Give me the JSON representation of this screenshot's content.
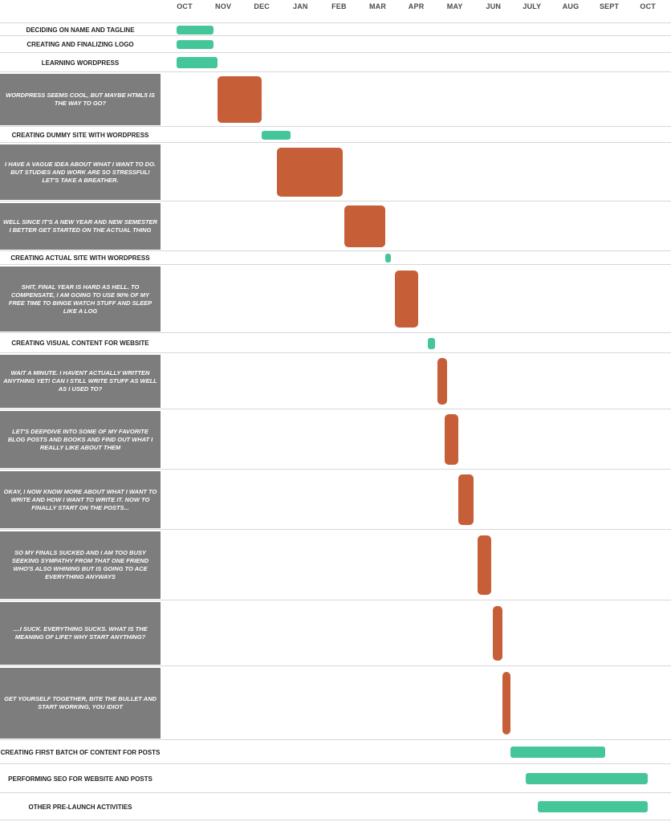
{
  "chart_data": {
    "type": "gantt",
    "x_axis": {
      "labels": [
        "OCT",
        "NOV",
        "DEC",
        "JAN",
        "FEB",
        "MAR",
        "APR",
        "MAY",
        "JUN",
        "JULY",
        "AUG",
        "SEPT",
        "OCT"
      ]
    },
    "colors": {
      "task": "#44c699",
      "note": "#c65f38",
      "note_label_bg": "#7d7d7d"
    },
    "rows": [
      {
        "label": "DECIDING ON NAME AND TAGLINE",
        "kind": "task",
        "start": 0.0,
        "end": 0.95
      },
      {
        "label": "CREATING AND FINALIZING LOGO",
        "kind": "task",
        "start": 0.0,
        "end": 0.95
      },
      {
        "label": "LEARNING WORDPRESS",
        "kind": "task",
        "start": 0.0,
        "end": 1.05
      },
      {
        "label": "WORDPRESS SEEMS COOL, BUT MAYBE HTML5 IS THE WAY TO GO?",
        "kind": "note",
        "start": 1.05,
        "end": 2.2
      },
      {
        "label": "CREATING DUMMY SITE WITH WORDPRESS",
        "kind": "task",
        "start": 2.2,
        "end": 2.95
      },
      {
        "label": "I HAVE A VAGUE IDEA ABOUT WHAT I WANT TO DO. BUT STUDIES AND WORK ARE SO STRESSFUL! LET'S TAKE A BREATHER.",
        "kind": "note",
        "start": 2.6,
        "end": 4.3
      },
      {
        "label": "WELL SINCE IT'S A NEW YEAR AND NEW SEMESTER I BETTER GET STARTED ON THE ACTUAL THING",
        "kind": "note",
        "start": 4.35,
        "end": 5.4
      },
      {
        "label": "CREATING ACTUAL SITE WITH WORDPRESS",
        "kind": "task",
        "start": 5.4,
        "end": 5.55
      },
      {
        "label": "SHIT, FINAL YEAR IS HARD AS HELL. TO COMPENSATE, I AM GOING TO USE 90% OF MY FREE TIME TO BINGE WATCH STUFF AND SLEEP LIKE A LOG",
        "kind": "note",
        "start": 5.65,
        "end": 6.25
      },
      {
        "label": "CREATING VISUAL CONTENT FOR WEBSITE",
        "kind": "task",
        "start": 6.5,
        "end": 6.7
      },
      {
        "label": "WAIT A MINUTE. I HAVENT ACTUALLY WRITTEN ANYTHING YET! CAN I STILL WRITE STUFF AS WELL AS I USED TO?",
        "kind": "note",
        "start": 6.75,
        "end": 7.0
      },
      {
        "label": "LET'S DEEPDIVE INTO SOME OF MY FAVORITE BLOG POSTS AND BOOKS AND FIND OUT WHAT I REALLY LIKE ABOUT THEM",
        "kind": "note",
        "start": 6.95,
        "end": 7.3
      },
      {
        "label": "OKAY, I NOW KNOW MORE ABOUT WHAT I WANT TO WRITE AND HOW I WANT TO WRITE IT. NOW TO FINALLY START ON THE POSTS...",
        "kind": "note",
        "start": 7.3,
        "end": 7.7
      },
      {
        "label": "SO MY FINALS SUCKED AND I AM TOO BUSY SEEKING SYMPATHY FROM THAT ONE FRIEND WHO'S ALSO WHINING BUT IS GOING TO ACE EVERYTHING ANYWAYS",
        "kind": "note",
        "start": 7.8,
        "end": 8.15
      },
      {
        "label": "....I SUCK. EVERYTHING SUCKS. WHAT IS THE MEANING OF LIFE? WHY START ANYTHING?",
        "kind": "note",
        "start": 8.2,
        "end": 8.45
      },
      {
        "label": "GET YOURSELF TOGETHER, BITE THE BULLET AND START WORKING, YOU IDIOT",
        "kind": "note",
        "start": 8.45,
        "end": 8.65
      },
      {
        "label": "CREATING FIRST BATCH OF CONTENT FOR POSTS",
        "kind": "task",
        "start": 8.65,
        "end": 11.1
      },
      {
        "label": "PERFORMING SEO FOR WEBSITE AND POSTS",
        "kind": "task",
        "start": 9.05,
        "end": 12.2
      },
      {
        "label": "OTHER PRE-LAUNCH ACTIVITIES",
        "kind": "task",
        "start": 9.35,
        "end": 12.2
      }
    ]
  }
}
